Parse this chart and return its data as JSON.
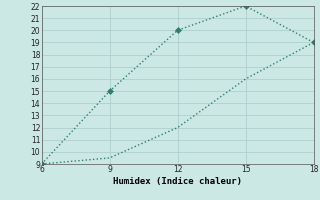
{
  "x_upper": [
    6,
    9,
    12,
    15,
    18
  ],
  "y_upper": [
    9,
    15,
    20,
    22,
    19
  ],
  "x_lower": [
    6,
    9,
    12,
    15,
    18
  ],
  "y_lower": [
    9,
    9.5,
    12,
    16,
    19
  ],
  "xlim": [
    6,
    18
  ],
  "ylim": [
    9,
    22
  ],
  "xticks": [
    6,
    9,
    12,
    15,
    18
  ],
  "yticks": [
    9,
    10,
    11,
    12,
    13,
    14,
    15,
    16,
    17,
    18,
    19,
    20,
    21,
    22
  ],
  "xlabel": "Humidex (Indice chaleur)",
  "line_color": "#2e7d6e",
  "bg_color": "#cce8e4",
  "grid_color": "#aed0cc",
  "markersize": 3,
  "linewidth": 1.0,
  "linestyle": ":"
}
